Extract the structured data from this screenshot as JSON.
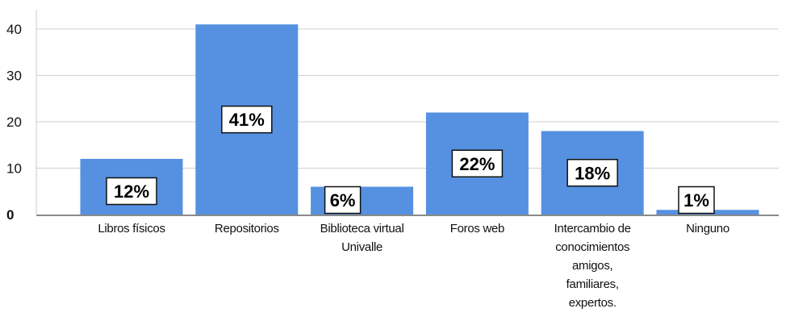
{
  "chart_data": {
    "type": "bar",
    "categories": [
      "Libros físicos",
      "Repositorios",
      "Biblioteca virtual Univalle",
      "Foros web",
      "Intercambio de conocimientos amigos, familiares, expertos.",
      "Ninguno"
    ],
    "category_lines": [
      [
        "Libros físicos"
      ],
      [
        "Repositorios"
      ],
      [
        "Biblioteca virtual",
        "Univalle"
      ],
      [
        "Foros web"
      ],
      [
        "Intercambio de",
        "conocimientos",
        "amigos,",
        "familiares,",
        "expertos."
      ],
      [
        "Ninguno"
      ]
    ],
    "values": [
      12,
      41,
      6,
      22,
      18,
      1
    ],
    "data_labels": [
      "12%",
      "41%",
      "6%",
      "22%",
      "18%",
      "1%"
    ],
    "y_ticks": [
      "0",
      "10",
      "20",
      "30",
      "40"
    ],
    "ylim": [
      0,
      44
    ],
    "grid": true,
    "bar_color": "#5591e0",
    "title": "",
    "xlabel": "",
    "ylabel": ""
  }
}
